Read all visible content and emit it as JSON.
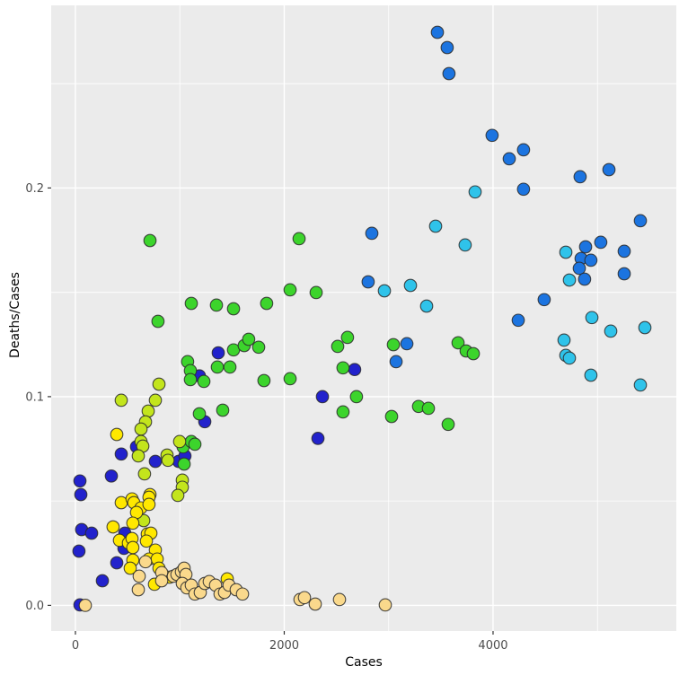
{
  "figure": {
    "background": "#FFFFFF",
    "panel_background": "#EBEBEB",
    "grid_color": "#FFFFFF",
    "tick_mark_color": "#333333",
    "tick_label_color": "#4D4D4D",
    "axis_title_color": "#000000"
  },
  "chart_data": {
    "type": "scatter",
    "title": "",
    "xlabel": "Cases",
    "ylabel": "Deaths/Cases",
    "legend_position": "none",
    "grid": true,
    "x_domain": [
      -232,
      5755
    ],
    "y_domain": [
      -0.0123,
      0.2875
    ],
    "x_ticks": [
      0,
      2000,
      4000
    ],
    "x_tick_labels": [
      "0",
      "2000",
      "4000"
    ],
    "x_minor_ticks": [
      1000,
      3000,
      5000
    ],
    "y_ticks": [
      0.0,
      0.1,
      0.2
    ],
    "y_tick_labels": [
      "0.0",
      "0.1",
      "0.2"
    ],
    "y_minor_ticks": [
      0.05,
      0.15,
      0.25
    ],
    "marker": {
      "radius": 6.8,
      "stroke": "#2A2A2A",
      "stroke_width": 1.1
    },
    "series": [
      {
        "name": "navy",
        "color": "#2222CC",
        "points": [
          [
            2675,
            0.113
          ],
          [
            2366,
            0.1
          ],
          [
            2323,
            0.08
          ],
          [
            1368,
            0.121
          ],
          [
            1187,
            0.11
          ],
          [
            1239,
            0.088
          ],
          [
            585,
            0.076
          ],
          [
            439,
            0.0725
          ],
          [
            766,
            0.069
          ],
          [
            989,
            0.069
          ],
          [
            1049,
            0.0716
          ],
          [
            344,
            0.062
          ],
          [
            43,
            0.0596
          ],
          [
            52,
            0.0531
          ],
          [
            60,
            0.0363
          ],
          [
            155,
            0.0346
          ],
          [
            473,
            0.0346
          ],
          [
            465,
            0.0273
          ],
          [
            34,
            0.026
          ],
          [
            396,
            0.0204
          ],
          [
            258,
            0.0118
          ],
          [
            43,
            0.0002
          ]
        ]
      },
      {
        "name": "blue",
        "color": "#1C74E0",
        "points": [
          [
            3467,
            0.2746
          ],
          [
            3561,
            0.2673
          ],
          [
            3578,
            0.2548
          ],
          [
            3991,
            0.2252
          ],
          [
            4292,
            0.2183
          ],
          [
            4155,
            0.214
          ],
          [
            4834,
            0.2054
          ],
          [
            5110,
            0.2088
          ],
          [
            4292,
            0.1994
          ],
          [
            5411,
            0.1843
          ],
          [
            5032,
            0.174
          ],
          [
            4886,
            0.1718
          ],
          [
            5256,
            0.1697
          ],
          [
            5256,
            0.1589
          ],
          [
            4843,
            0.1662
          ],
          [
            4937,
            0.1654
          ],
          [
            4826,
            0.1615
          ],
          [
            4877,
            0.1563
          ],
          [
            4490,
            0.1465
          ],
          [
            4241,
            0.1366
          ],
          [
            2839,
            0.1783
          ],
          [
            2804,
            0.155
          ],
          [
            3174,
            0.1254
          ],
          [
            3071,
            0.1168
          ]
        ]
      },
      {
        "name": "cyan",
        "color": "#2FC3EA",
        "points": [
          [
            3828,
            0.1981
          ],
          [
            4697,
            0.1692
          ],
          [
            4731,
            0.1559
          ],
          [
            4946,
            0.1379
          ],
          [
            5127,
            0.1314
          ],
          [
            5454,
            0.1331
          ],
          [
            4680,
            0.1271
          ],
          [
            4697,
            0.1198
          ],
          [
            4731,
            0.1185
          ],
          [
            4937,
            0.1103
          ],
          [
            5411,
            0.1056
          ],
          [
            3450,
            0.1817
          ],
          [
            3733,
            0.1727
          ],
          [
            2959,
            0.1507
          ],
          [
            3209,
            0.1533
          ],
          [
            3364,
            0.1434
          ]
        ]
      },
      {
        "name": "green",
        "color": "#3CD42C",
        "points": [
          [
            2142,
            0.1757
          ],
          [
            2056,
            0.1512
          ],
          [
            2306,
            0.1499
          ],
          [
            2606,
            0.1284
          ],
          [
            2512,
            0.1241
          ],
          [
            3045,
            0.1249
          ],
          [
            3665,
            0.1258
          ],
          [
            3742,
            0.1219
          ],
          [
            3811,
            0.1206
          ],
          [
            2563,
            0.1138
          ],
          [
            2056,
            0.1086
          ],
          [
            2692,
            0.1
          ],
          [
            2563,
            0.0927
          ],
          [
            3028,
            0.0905
          ],
          [
            3286,
            0.0953
          ],
          [
            3381,
            0.0944
          ],
          [
            3570,
            0.0867
          ],
          [
            714,
            0.1748
          ],
          [
            1110,
            0.1447
          ],
          [
            1351,
            0.1439
          ],
          [
            1514,
            0.1421
          ],
          [
            1832,
            0.1447
          ],
          [
            791,
            0.1361
          ],
          [
            1514,
            0.1224
          ],
          [
            1617,
            0.1245
          ],
          [
            1660,
            0.1275
          ],
          [
            1755,
            0.1237
          ],
          [
            1075,
            0.1168
          ],
          [
            1101,
            0.1125
          ],
          [
            1101,
            0.1082
          ],
          [
            1230,
            0.1073
          ],
          [
            1359,
            0.1142
          ],
          [
            1480,
            0.1142
          ],
          [
            1806,
            0.1077
          ],
          [
            1187,
            0.0918
          ],
          [
            1411,
            0.0935
          ],
          [
            1032,
            0.0759
          ],
          [
            1110,
            0.0785
          ],
          [
            1144,
            0.0772
          ],
          [
            1041,
            0.0677
          ]
        ]
      },
      {
        "name": "lime",
        "color": "#C3E51C",
        "points": [
          [
            800,
            0.106
          ],
          [
            439,
            0.0983
          ],
          [
            766,
            0.0983
          ],
          [
            697,
            0.0931
          ],
          [
            671,
            0.0879
          ],
          [
            628,
            0.0845
          ],
          [
            628,
            0.0785
          ],
          [
            645,
            0.0763
          ],
          [
            602,
            0.0716
          ],
          [
            878,
            0.072
          ],
          [
            886,
            0.0695
          ],
          [
            998,
            0.0785
          ],
          [
            662,
            0.063
          ],
          [
            1024,
            0.06
          ],
          [
            1024,
            0.0566
          ],
          [
            981,
            0.0527
          ],
          [
            654,
            0.0406
          ]
        ]
      },
      {
        "name": "yellow",
        "color": "#FFE800",
        "points": [
          [
            396,
            0.0819
          ],
          [
            714,
            0.0531
          ],
          [
            705,
            0.0518
          ],
          [
            439,
            0.0492
          ],
          [
            542,
            0.051
          ],
          [
            559,
            0.0492
          ],
          [
            628,
            0.0467
          ],
          [
            585,
            0.0445
          ],
          [
            705,
            0.0484
          ],
          [
            361,
            0.0376
          ],
          [
            550,
            0.0394
          ],
          [
            422,
            0.0312
          ],
          [
            508,
            0.0299
          ],
          [
            542,
            0.032
          ],
          [
            550,
            0.0277
          ],
          [
            688,
            0.0342
          ],
          [
            723,
            0.0346
          ],
          [
            680,
            0.0308
          ],
          [
            766,
            0.0265
          ],
          [
            550,
            0.0217
          ],
          [
            525,
            0.0178
          ],
          [
            705,
            0.0222
          ],
          [
            783,
            0.0222
          ],
          [
            800,
            0.0178
          ],
          [
            757,
            0.0101
          ],
          [
            903,
            0.0135
          ],
          [
            1454,
            0.0127
          ]
        ]
      },
      {
        "name": "sand",
        "color": "#FAD98C",
        "points": [
          [
            671,
            0.0209
          ],
          [
            611,
            0.014
          ],
          [
            826,
            0.0157
          ],
          [
            826,
            0.0118
          ],
          [
            602,
            0.0075
          ],
          [
            938,
            0.014
          ],
          [
            972,
            0.0148
          ],
          [
            1015,
            0.0161
          ],
          [
            1041,
            0.0178
          ],
          [
            1058,
            0.0148
          ],
          [
            1024,
            0.0105
          ],
          [
            1067,
            0.0084
          ],
          [
            1110,
            0.0097
          ],
          [
            1144,
            0.0054
          ],
          [
            1196,
            0.0062
          ],
          [
            1239,
            0.0105
          ],
          [
            1282,
            0.0114
          ],
          [
            1342,
            0.0097
          ],
          [
            1385,
            0.0054
          ],
          [
            1428,
            0.0062
          ],
          [
            1471,
            0.0097
          ],
          [
            1540,
            0.0075
          ],
          [
            1600,
            0.0054
          ],
          [
            95,
            0.0
          ],
          [
            2151,
            0.0028
          ],
          [
            2194,
            0.0037
          ],
          [
            2297,
            0.0006
          ],
          [
            2529,
            0.0028
          ],
          [
            2968,
            0.0002
          ]
        ]
      }
    ]
  }
}
